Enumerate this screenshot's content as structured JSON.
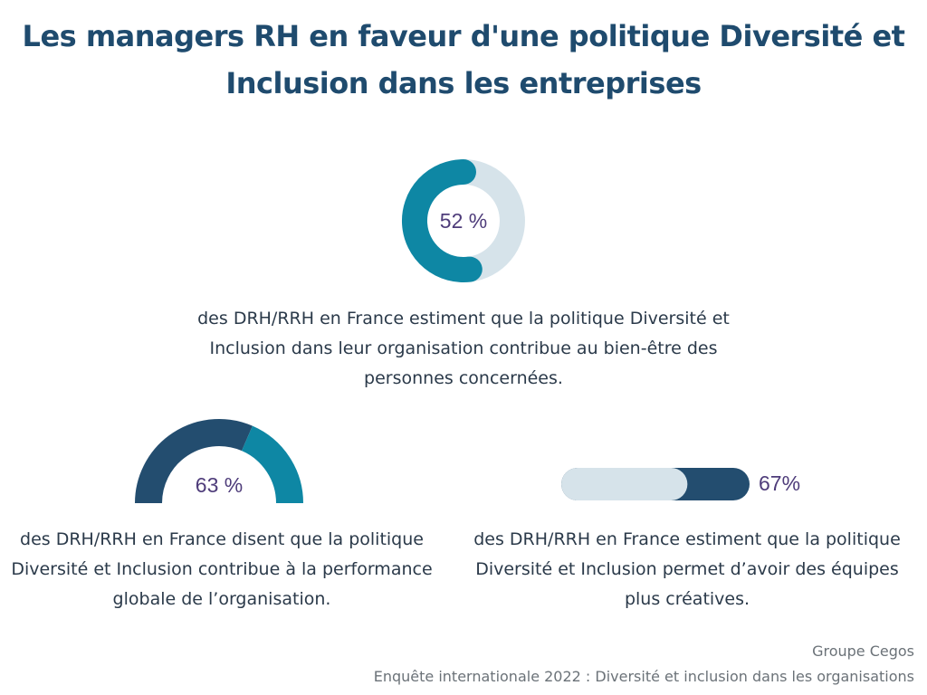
{
  "title": "Les managers RH en faveur d'une politique Diversité et Inclusion dans les entreprises",
  "colors": {
    "title": "#1f4b6e",
    "teal": "#0e87a4",
    "navy": "#234d6f",
    "light": "#d6e3ea",
    "percent_text": "#4e3c7a",
    "body_text": "#2b3a4a"
  },
  "chart_data": [
    {
      "type": "pie",
      "style": "donut",
      "value_label": "52 %",
      "values": [
        52,
        48
      ],
      "colors": [
        "#0e87a4",
        "#d6e3ea"
      ],
      "description": "des DRH/RRH en France estiment que la politique Diversité et Inclusion dans leur organisation contribue au bien-être des personnes concernées."
    },
    {
      "type": "pie",
      "style": "half-donut",
      "value_label": "63 %",
      "values": [
        63,
        37
      ],
      "colors": [
        "#234d6f",
        "#0e87a4"
      ],
      "description": "des DRH/RRH en France disent que la politique Diversité et Inclusion contribue à la performance globale de l’organisation."
    },
    {
      "type": "bar",
      "style": "progress",
      "value_label": "67%",
      "values": [
        67,
        33
      ],
      "colors": [
        "#d6e3ea",
        "#234d6f"
      ],
      "description": "des DRH/RRH en France estiment que la politique Diversité et Inclusion permet d’avoir des équipes plus créatives."
    }
  ],
  "source": {
    "line1": "Groupe Cegos",
    "line2": "Enquête internationale 2022 : Diversité et inclusion dans les organisations"
  }
}
